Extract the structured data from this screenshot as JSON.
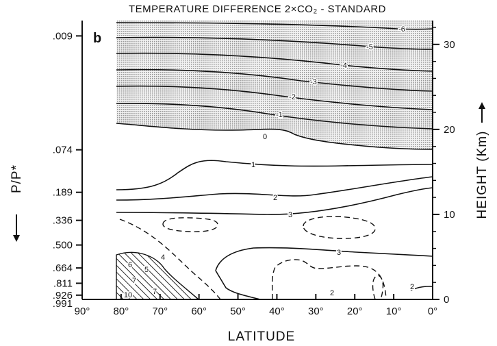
{
  "chart_data": {
    "type": "contour",
    "title": "TEMPERATURE DIFFERENCE  2×CO₂ - STANDARD",
    "panel_label": "b",
    "xlabel": "LATITUDE",
    "ylabel_left": "P/P*",
    "ylabel_right": "HEIGHT (Km)",
    "x_axis": {
      "reversed": true,
      "range": [
        90,
        0
      ],
      "ticks": [
        90,
        80,
        70,
        60,
        50,
        40,
        30,
        20,
        10,
        0
      ],
      "tick_labels": [
        "90°",
        "80°",
        "70°",
        "60°",
        "50°",
        "40°",
        "30°",
        "20°",
        "10°",
        "0°"
      ]
    },
    "y_axis_left": {
      "tick_labels": [
        ".009",
        ".074",
        ".189",
        ".336",
        ".500",
        ".664",
        ".811",
        ".926",
        ".991"
      ]
    },
    "y_axis_right": {
      "range": [
        0,
        32
      ],
      "ticks": [
        0,
        10,
        20,
        30
      ],
      "tick_labels": [
        "0",
        "10",
        "20",
        "30"
      ]
    },
    "shading": {
      "stratosphere_cooling": "stippled region (difference below 0) above about 17–20 km",
      "polar_warming": "hatched region (difference of 4 and above) near the surface at 60°–80°"
    },
    "contour_labels": [
      "-6",
      "-5",
      "-4",
      "-3",
      "-2",
      "-1",
      "0",
      "1",
      "2",
      "3",
      "3",
      "2",
      "2",
      "4",
      "5",
      "6",
      "7",
      "7",
      "10"
    ],
    "colors": {
      "ink": "#111111",
      "stipple": "#c4c4c4",
      "background": "#ffffff"
    }
  }
}
